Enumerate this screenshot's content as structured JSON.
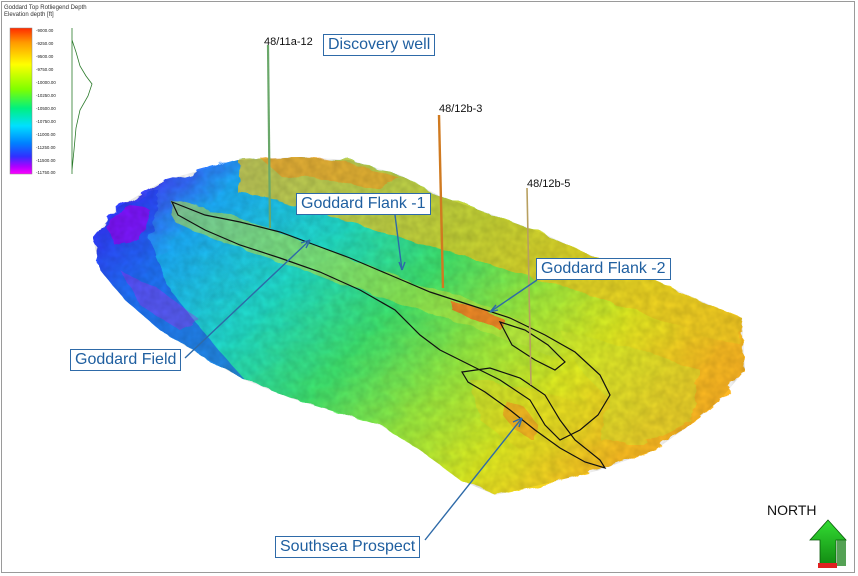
{
  "legend": {
    "title_line1": "Goddard Top Rotliegend Depth",
    "title_line2": "Elevation depth [ft]",
    "ticks": [
      "-9000.00",
      "-9250.00",
      "-9500.00",
      "-9750.00",
      "-10000.00",
      "-10250.00",
      "-10500.00",
      "-10750.00",
      "-11000.00",
      "-11250.00",
      "-11500.00",
      "-11750.00"
    ]
  },
  "wells": {
    "well1": "48/11a-12",
    "well2": "48/12b-3",
    "well3": "48/12b-5"
  },
  "callouts": {
    "discovery": "Discovery well",
    "flank1": "Goddard Flank -1",
    "flank2": "Goddard Flank -2",
    "field": "Goddard Field",
    "southsea": "Southsea Prospect"
  },
  "north_label": "NORTH",
  "colors": {
    "callout_text": "#1f5fa0",
    "callout_border": "#2e6aa8",
    "north_arrow": "#22b822"
  }
}
